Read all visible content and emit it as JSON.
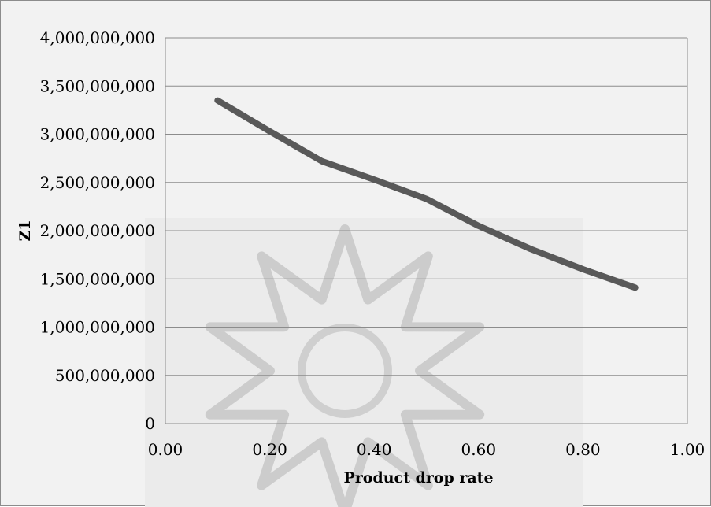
{
  "chart_data": {
    "type": "line",
    "title": "",
    "xlabel": "Product drop rate",
    "ylabel": "Z1",
    "x": [
      0.1,
      0.2,
      0.3,
      0.4,
      0.5,
      0.6,
      0.7,
      0.8,
      0.9
    ],
    "series": [
      {
        "values": [
          3350000000,
          3030000000,
          2720000000,
          2530000000,
          2330000000,
          2050000000,
          1810000000,
          1600000000,
          1410000000
        ]
      }
    ],
    "xlim": [
      0,
      1
    ],
    "ylim": [
      0,
      4000000000
    ],
    "x_ticks": [
      "0.00",
      "0.20",
      "0.40",
      "0.60",
      "0.80",
      "1.00"
    ],
    "y_ticks": [
      "0",
      "500,000,000",
      "1,000,000,000",
      "1,500,000,000",
      "2,000,000,000",
      "2,500,000,000",
      "3,000,000,000",
      "3,500,000,000",
      "4,000,000,000"
    ],
    "grid": true,
    "legend": "none",
    "colors": {
      "line": "#595959",
      "gridline": "#8c8c8c",
      "background": "#f2f2f2",
      "watermark": "#a6a6a6"
    }
  }
}
